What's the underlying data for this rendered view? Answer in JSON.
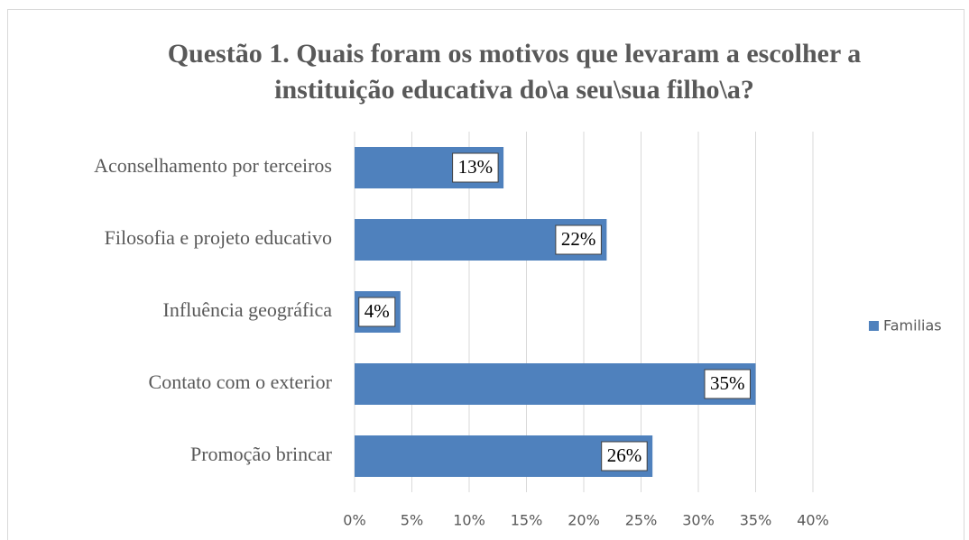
{
  "chart_data": {
    "type": "bar",
    "orientation": "horizontal",
    "title": [
      "Questão 1. Quais foram os motivos que levaram a escolher a",
      "instituição educativa do\\a seu\\sua filho\\a?"
    ],
    "categories": [
      "Aconselhamento por terceiros",
      "Filosofia e projeto educativo",
      "Influência geográfica",
      "Contato com o exterior",
      "Promoção brincar"
    ],
    "series": [
      {
        "name": "Familias",
        "color": "#4f81bd",
        "values": [
          13,
          22,
          4,
          35,
          26
        ],
        "value_labels": [
          "13%",
          "22%",
          "4%",
          "35%",
          "26%"
        ]
      }
    ],
    "xlim": [
      0,
      40
    ],
    "xticks": [
      {
        "value": 0,
        "label": "0%"
      },
      {
        "value": 5,
        "label": "5%"
      },
      {
        "value": 10,
        "label": "10%"
      },
      {
        "value": 15,
        "label": "15%"
      },
      {
        "value": 20,
        "label": "20%"
      },
      {
        "value": 25,
        "label": "25%"
      },
      {
        "value": 30,
        "label": "30%"
      },
      {
        "value": 35,
        "label": "35%"
      },
      {
        "value": 40,
        "label": "40%"
      }
    ],
    "grid": true,
    "legend": "right"
  }
}
